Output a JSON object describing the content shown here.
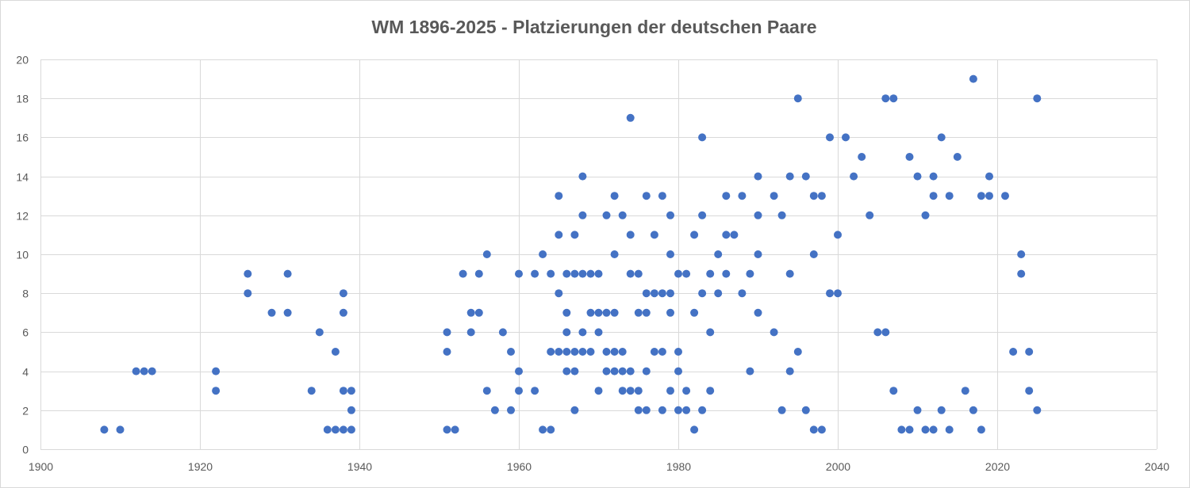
{
  "chart_data": {
    "type": "scatter",
    "title": "WM 1896-2025 - Platzierungen der deutschen Paare",
    "xlabel": "",
    "ylabel": "",
    "xlim": [
      1900,
      2040
    ],
    "ylim": [
      0,
      20
    ],
    "x_ticks": [
      1900,
      1920,
      1940,
      1960,
      1980,
      2000,
      2020,
      2040
    ],
    "y_ticks": [
      0,
      2,
      4,
      6,
      8,
      10,
      12,
      14,
      16,
      18,
      20
    ],
    "grid": true,
    "legend": "none",
    "marker_color": "#4472C4",
    "series": [
      {
        "points": [
          [
            1908,
            1
          ],
          [
            1910,
            1
          ],
          [
            1912,
            4
          ],
          [
            1913,
            4
          ],
          [
            1914,
            4
          ],
          [
            1922,
            4
          ],
          [
            1922,
            3
          ],
          [
            1926,
            9
          ],
          [
            1926,
            8
          ],
          [
            1929,
            7
          ],
          [
            1931,
            9
          ],
          [
            1931,
            7
          ],
          [
            1934,
            3
          ],
          [
            1935,
            6
          ],
          [
            1936,
            1
          ],
          [
            1937,
            1
          ],
          [
            1937,
            5
          ],
          [
            1938,
            8
          ],
          [
            1938,
            7
          ],
          [
            1938,
            3
          ],
          [
            1938,
            1
          ],
          [
            1939,
            3
          ],
          [
            1939,
            2
          ],
          [
            1939,
            1
          ],
          [
            1951,
            6
          ],
          [
            1951,
            5
          ],
          [
            1951,
            1
          ],
          [
            1952,
            1
          ],
          [
            1953,
            9
          ],
          [
            1954,
            7
          ],
          [
            1954,
            6
          ],
          [
            1955,
            9
          ],
          [
            1955,
            7
          ],
          [
            1956,
            10
          ],
          [
            1956,
            3
          ],
          [
            1957,
            2
          ],
          [
            1958,
            6
          ],
          [
            1959,
            5
          ],
          [
            1959,
            2
          ],
          [
            1960,
            9
          ],
          [
            1960,
            4
          ],
          [
            1960,
            3
          ],
          [
            1962,
            9
          ],
          [
            1962,
            3
          ],
          [
            1963,
            10
          ],
          [
            1963,
            1
          ],
          [
            1964,
            9
          ],
          [
            1964,
            5
          ],
          [
            1964,
            1
          ],
          [
            1965,
            13
          ],
          [
            1965,
            11
          ],
          [
            1965,
            8
          ],
          [
            1965,
            5
          ],
          [
            1966,
            9
          ],
          [
            1966,
            7
          ],
          [
            1966,
            6
          ],
          [
            1966,
            5
          ],
          [
            1966,
            4
          ],
          [
            1967,
            11
          ],
          [
            1967,
            9
          ],
          [
            1967,
            5
          ],
          [
            1967,
            4
          ],
          [
            1967,
            2
          ],
          [
            1968,
            14
          ],
          [
            1968,
            12
          ],
          [
            1968,
            9
          ],
          [
            1968,
            6
          ],
          [
            1968,
            5
          ],
          [
            1969,
            9
          ],
          [
            1969,
            7
          ],
          [
            1969,
            5
          ],
          [
            1970,
            9
          ],
          [
            1970,
            7
          ],
          [
            1970,
            6
          ],
          [
            1970,
            3
          ],
          [
            1971,
            12
          ],
          [
            1971,
            7
          ],
          [
            1971,
            5
          ],
          [
            1971,
            4
          ],
          [
            1972,
            13
          ],
          [
            1972,
            10
          ],
          [
            1972,
            7
          ],
          [
            1972,
            5
          ],
          [
            1972,
            4
          ],
          [
            1973,
            12
          ],
          [
            1973,
            5
          ],
          [
            1973,
            4
          ],
          [
            1973,
            3
          ],
          [
            1974,
            17
          ],
          [
            1974,
            11
          ],
          [
            1974,
            9
          ],
          [
            1974,
            4
          ],
          [
            1974,
            3
          ],
          [
            1975,
            9
          ],
          [
            1975,
            7
          ],
          [
            1975,
            3
          ],
          [
            1975,
            2
          ],
          [
            1976,
            13
          ],
          [
            1976,
            8
          ],
          [
            1976,
            7
          ],
          [
            1976,
            4
          ],
          [
            1976,
            2
          ],
          [
            1977,
            11
          ],
          [
            1977,
            8
          ],
          [
            1977,
            5
          ],
          [
            1978,
            13
          ],
          [
            1978,
            8
          ],
          [
            1978,
            5
          ],
          [
            1978,
            2
          ],
          [
            1979,
            12
          ],
          [
            1979,
            10
          ],
          [
            1979,
            8
          ],
          [
            1979,
            7
          ],
          [
            1979,
            3
          ],
          [
            1980,
            9
          ],
          [
            1980,
            5
          ],
          [
            1980,
            4
          ],
          [
            1980,
            2
          ],
          [
            1981,
            9
          ],
          [
            1981,
            3
          ],
          [
            1981,
            2
          ],
          [
            1982,
            11
          ],
          [
            1982,
            7
          ],
          [
            1982,
            1
          ],
          [
            1983,
            16
          ],
          [
            1983,
            12
          ],
          [
            1983,
            8
          ],
          [
            1983,
            2
          ],
          [
            1984,
            9
          ],
          [
            1984,
            6
          ],
          [
            1984,
            3
          ],
          [
            1985,
            10
          ],
          [
            1985,
            8
          ],
          [
            1986,
            13
          ],
          [
            1986,
            11
          ],
          [
            1986,
            9
          ],
          [
            1987,
            11
          ],
          [
            1988,
            13
          ],
          [
            1988,
            8
          ],
          [
            1989,
            9
          ],
          [
            1989,
            4
          ],
          [
            1990,
            14
          ],
          [
            1990,
            12
          ],
          [
            1990,
            10
          ],
          [
            1990,
            7
          ],
          [
            1992,
            13
          ],
          [
            1992,
            6
          ],
          [
            1993,
            12
          ],
          [
            1993,
            2
          ],
          [
            1994,
            14
          ],
          [
            1994,
            9
          ],
          [
            1994,
            4
          ],
          [
            1995,
            18
          ],
          [
            1995,
            5
          ],
          [
            1996,
            14
          ],
          [
            1996,
            2
          ],
          [
            1997,
            13
          ],
          [
            1997,
            10
          ],
          [
            1997,
            1
          ],
          [
            1998,
            13
          ],
          [
            1998,
            1
          ],
          [
            1999,
            16
          ],
          [
            1999,
            8
          ],
          [
            2000,
            11
          ],
          [
            2000,
            8
          ],
          [
            2001,
            16
          ],
          [
            2002,
            14
          ],
          [
            2003,
            15
          ],
          [
            2004,
            12
          ],
          [
            2005,
            6
          ],
          [
            2006,
            18
          ],
          [
            2006,
            6
          ],
          [
            2007,
            18
          ],
          [
            2007,
            3
          ],
          [
            2008,
            1
          ],
          [
            2009,
            15
          ],
          [
            2009,
            1
          ],
          [
            2010,
            14
          ],
          [
            2010,
            2
          ],
          [
            2011,
            12
          ],
          [
            2011,
            1
          ],
          [
            2012,
            14
          ],
          [
            2012,
            13
          ],
          [
            2012,
            1
          ],
          [
            2013,
            16
          ],
          [
            2013,
            2
          ],
          [
            2014,
            13
          ],
          [
            2014,
            1
          ],
          [
            2015,
            15
          ],
          [
            2016,
            3
          ],
          [
            2017,
            19
          ],
          [
            2017,
            2
          ],
          [
            2018,
            13
          ],
          [
            2018,
            1
          ],
          [
            2019,
            14
          ],
          [
            2019,
            13
          ],
          [
            2021,
            13
          ],
          [
            2022,
            5
          ],
          [
            2023,
            10
          ],
          [
            2023,
            9
          ],
          [
            2024,
            5
          ],
          [
            2024,
            3
          ],
          [
            2025,
            18
          ],
          [
            2025,
            2
          ]
        ]
      }
    ]
  }
}
